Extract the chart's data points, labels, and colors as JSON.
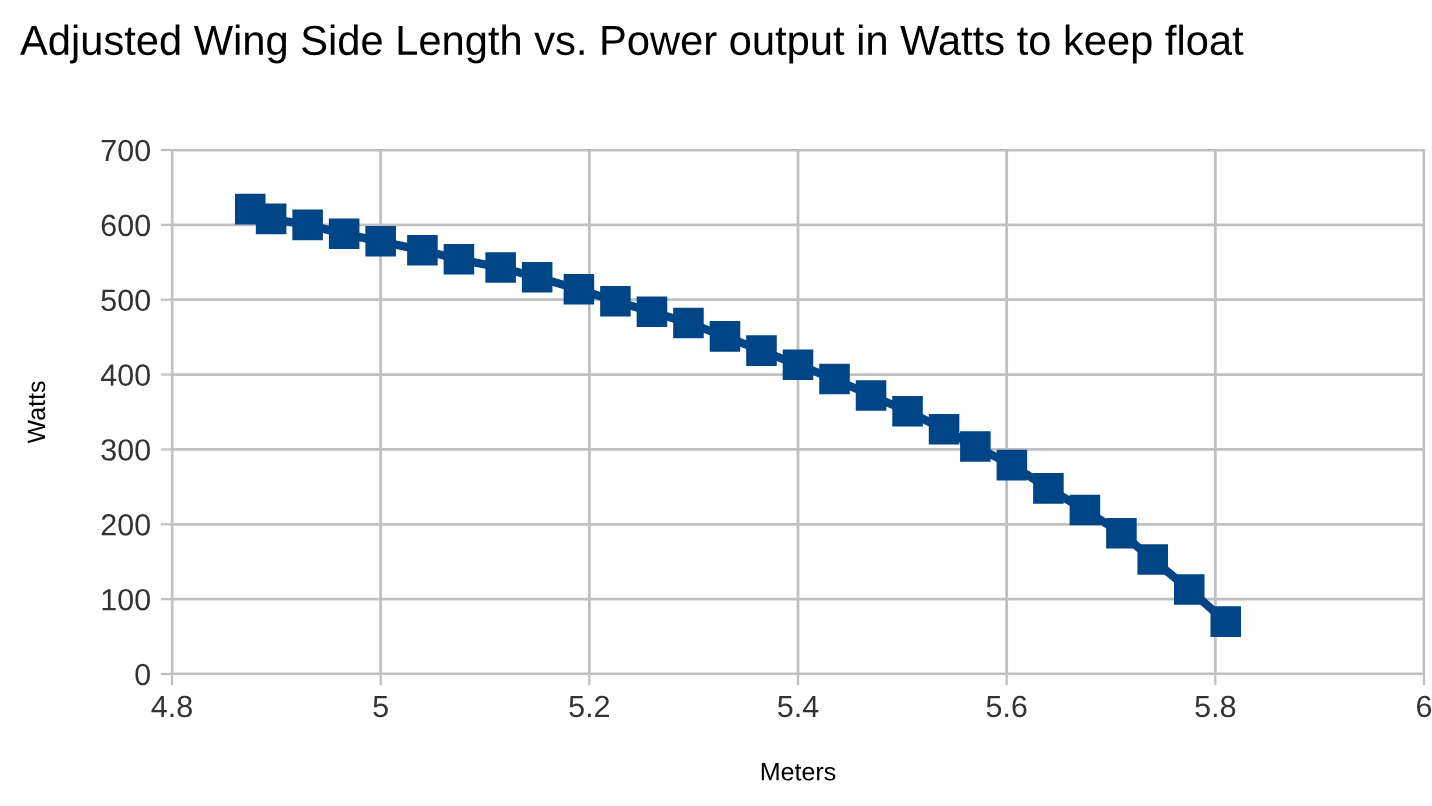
{
  "chart_data": {
    "type": "line",
    "title": "Adjusted Wing Side Length vs. Power output in Watts to keep float",
    "xlabel": "Meters",
    "ylabel": "Watts",
    "x": [
      4.875,
      4.895,
      4.93,
      4.965,
      5.0,
      5.04,
      5.075,
      5.115,
      5.15,
      5.19,
      5.225,
      5.26,
      5.295,
      5.33,
      5.365,
      5.4,
      5.435,
      5.47,
      5.505,
      5.54,
      5.57,
      5.605,
      5.64,
      5.675,
      5.71,
      5.74,
      5.775,
      5.81
    ],
    "series": [
      {
        "color": "#004586",
        "values": [
          621,
          608,
          600,
          588,
          578,
          566,
          554,
          543,
          530,
          514,
          498,
          484,
          469,
          451,
          432,
          413,
          394,
          372,
          351,
          327,
          304,
          279,
          248,
          219,
          188,
          153,
          113,
          70
        ]
      }
    ],
    "xlim": [
      4.8,
      6
    ],
    "xticks": [
      4.8,
      5,
      5.2,
      5.4,
      5.6,
      5.8,
      6
    ],
    "ylim": [
      0,
      700
    ],
    "yticks": [
      0,
      100,
      200,
      300,
      400,
      500,
      600,
      700
    ],
    "grid": true,
    "legend": false,
    "marker": "square",
    "line_style": "solid"
  }
}
